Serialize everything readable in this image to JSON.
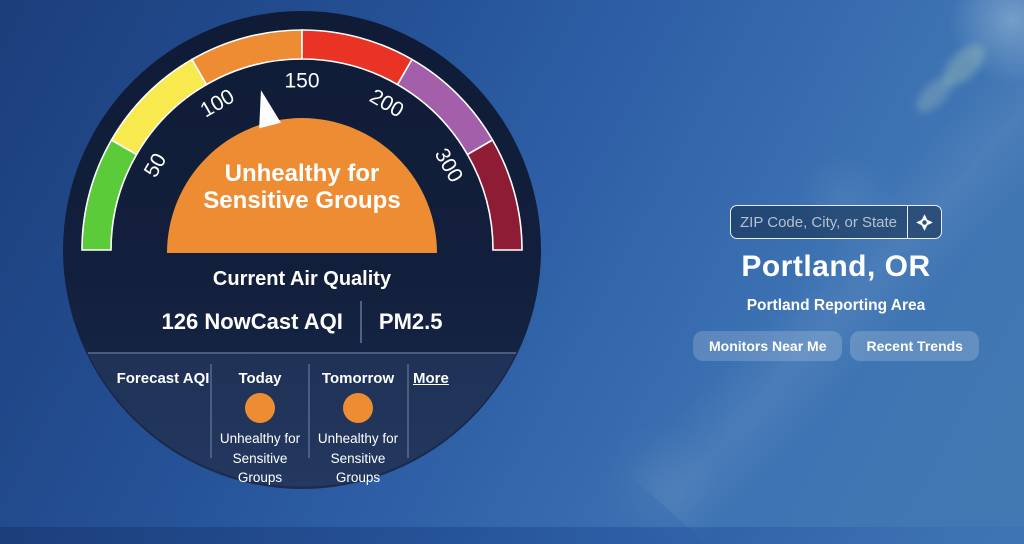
{
  "gauge": {
    "value": 126,
    "value_label": "NowCast AQI",
    "pollutant": "PM2.5",
    "category": "Unhealthy for Sensitive Groups",
    "category_color": "#ee8c33",
    "current_heading": "Current Air Quality",
    "needle_color": "#fdfdfd",
    "segments": [
      {
        "from": 0,
        "to": 50,
        "color": "#5ccb3a"
      },
      {
        "from": 50,
        "to": 100,
        "color": "#f7e94e"
      },
      {
        "from": 100,
        "to": 150,
        "color": "#ee8c33"
      },
      {
        "from": 150,
        "to": 200,
        "color": "#e93425"
      },
      {
        "from": 200,
        "to": 300,
        "color": "#a35fa9"
      },
      {
        "from": 300,
        "to": 500,
        "color": "#8e1c35"
      }
    ],
    "tick_labels": [
      "50",
      "100",
      "150",
      "200",
      "300"
    ]
  },
  "forecast": {
    "heading": "Forecast AQI",
    "more_label": "More",
    "days": [
      {
        "label": "Today",
        "category": "Unhealthy for Sensitive Groups",
        "color": "#ee8c33"
      },
      {
        "label": "Tomorrow",
        "category": "Unhealthy for Sensitive Groups",
        "color": "#ee8c33"
      }
    ]
  },
  "location": {
    "search_placeholder": "ZIP Code, City, or State",
    "name": "Portland, OR",
    "reporting_area": "Portland Reporting Area",
    "buttons": [
      "Monitors Near Me",
      "Recent Trends"
    ]
  }
}
